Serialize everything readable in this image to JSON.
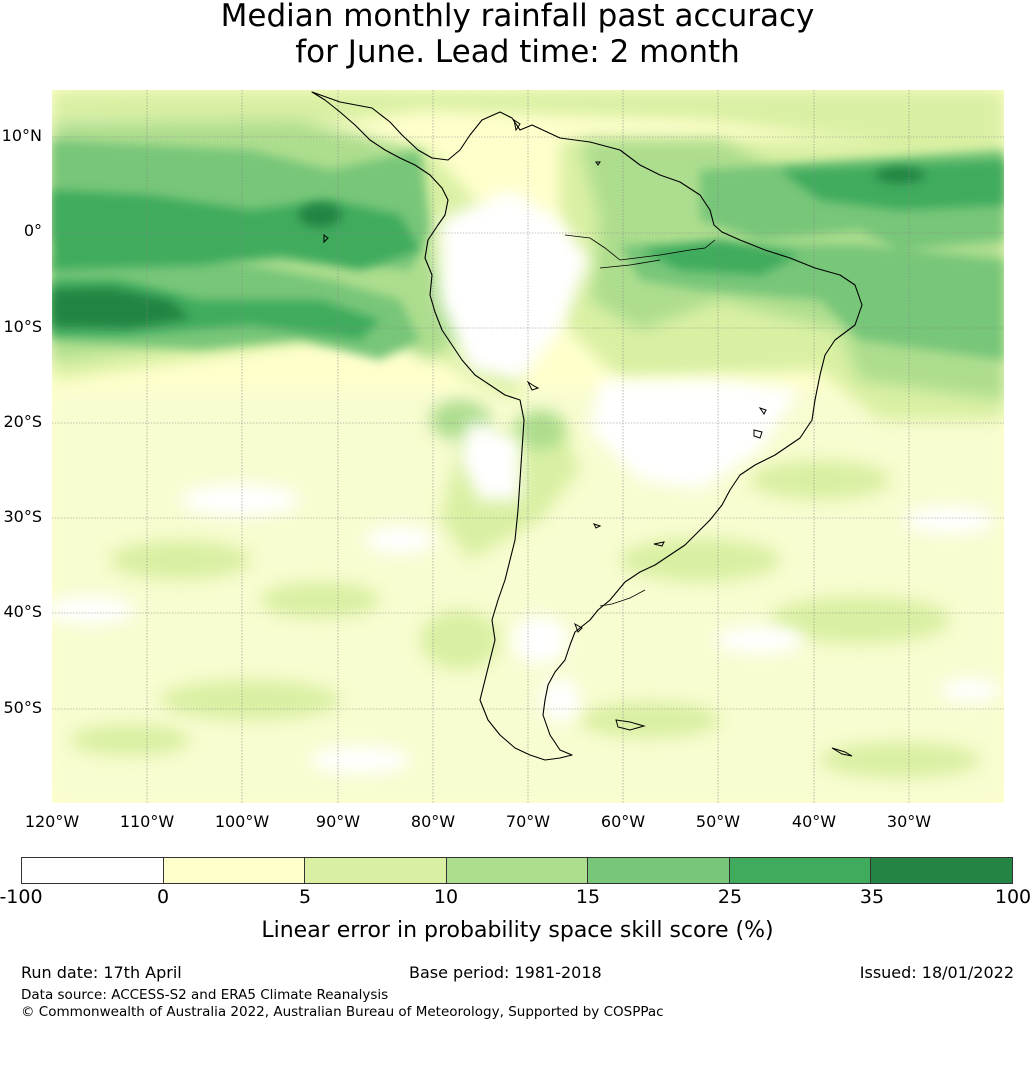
{
  "title": {
    "line1": "Median monthly rainfall past accuracy",
    "line2": "for June. Lead time: 2 month"
  },
  "map": {
    "region": "South America",
    "lat_labels": [
      "10°N",
      "0°",
      "10°S",
      "20°S",
      "30°S",
      "40°S",
      "50°S"
    ],
    "lon_labels": [
      "120°W",
      "110°W",
      "100°W",
      "90°W",
      "80°W",
      "70°W",
      "60°W",
      "50°W",
      "40°W",
      "30°W"
    ],
    "gridlines": true
  },
  "colorbar": {
    "ticks": [
      "-100",
      "0",
      "5",
      "10",
      "15",
      "25",
      "35",
      "100"
    ],
    "colors": [
      "#ffffff",
      "#ffffcc",
      "#d9f0a3",
      "#addd8e",
      "#78c679",
      "#41ab5d",
      "#238443"
    ],
    "label": "Linear error in probability space skill score (%)"
  },
  "footer": {
    "run_date": "Run date: 17th April",
    "base_period": "Base period: 1981-2018",
    "issued": "Issued: 18/01/2022",
    "data_source": "Data source: ACCESS-S2 and ERA5 Climate Reanalysis",
    "copyright": "© Commonwealth of Australia 2022, Australian Bureau of Meteorology, Supported by COSPPac"
  }
}
